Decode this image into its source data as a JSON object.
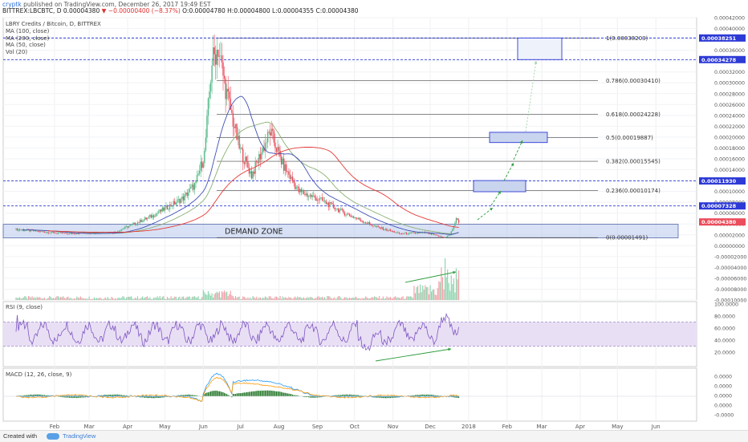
{
  "header": {
    "user": "cryptk",
    "published": "published on TradingView.com, December 26, 2017 19:49 EST",
    "symbol": "BITTREX:LBCBTC, D",
    "price": "0.00004380",
    "change": "−0.00000400 (−8.37%)",
    "ohlc": "O:0.00004780 H:0.00004800 L:0.00004355 C:0.00004380"
  },
  "legend": {
    "title": "LBRY Credits / Bitcoin, D, BITTREX",
    "ma100": "MA (100, close)",
    "ma200": "MA (200, close)",
    "ma50": "MA (50, close)",
    "vol": "Vol (20)",
    "rsi": "RSI (9, close)",
    "macd": "MACD (12, 26, close, 9)"
  },
  "footer": {
    "created": "Created with",
    "brand": "TradingView"
  },
  "colors": {
    "up": "#53b987",
    "down": "#eb4d5c",
    "ma100": "#3f51b5",
    "ma200": "#e53935",
    "ma50": "#8bb174",
    "fib": "#555555",
    "level": "#2d3ad6",
    "zone": "#b8c8ec",
    "rsi": "#7e57c2",
    "rsiband": "#e9dff5",
    "macd": "#2196f3",
    "signal": "#ff9800",
    "arrow": "#2e9e3e"
  },
  "chart_data": [
    {
      "type": "candlestick",
      "title": "LBRY Credits / Bitcoin, D, BITTREX",
      "x_labels": [
        "Feb",
        "Mar",
        "Apr",
        "May",
        "Jun",
        "Jul",
        "Aug",
        "Sep",
        "Oct",
        "Nov",
        "Dec",
        "2018",
        "Feb",
        "Mar",
        "Apr",
        "May",
        "Jun"
      ],
      "ylim": [
        -0.0001,
        0.00042
      ],
      "y_ticks": [
        "0.00042000",
        "0.00040000",
        "0.00038000",
        "0.00036000",
        "0.00034000",
        "0.00032000",
        "0.00030000",
        "0.00028000",
        "0.00026000",
        "0.00024000",
        "0.00022000",
        "0.00020000",
        "0.00018000",
        "0.00016000",
        "0.00014000",
        "0.00012000",
        "0.00010000",
        "0.00008000",
        "0.00006000",
        "0.00004000",
        "0.00002000",
        "0.00000000",
        "-0.00002000",
        "-0.00004000",
        "-0.00006000",
        "-0.00008000",
        "-0.00010000"
      ],
      "fib_levels": [
        {
          "label": "1(0.00038203)",
          "value": 0.00038203
        },
        {
          "label": "0.786(0.00030410)",
          "value": 0.0003041
        },
        {
          "label": "0.618(0.00024228)",
          "value": 0.00024228
        },
        {
          "label": "0.5(0.00019887)",
          "value": 0.00019887
        },
        {
          "label": "0.382(0.00015545)",
          "value": 0.00015545
        },
        {
          "label": "0.236(0.00010174)",
          "value": 0.00010174
        },
        {
          "label": "0(0.00001491)",
          "value": 1.491e-05
        }
      ],
      "price_levels": [
        {
          "label": "0.00038251",
          "value": 0.00038251
        },
        {
          "label": "0.00034278",
          "value": 0.00034278
        },
        {
          "label": "0.00011930",
          "value": 0.0001193
        },
        {
          "label": "0.00007328",
          "value": 7.328e-05
        }
      ],
      "last_price": "0.00004380",
      "annotations": [
        "DEMAND ZONE"
      ],
      "demand_zone": [
        1.45e-05,
        3.95e-05
      ],
      "target_boxes": [
        {
          "low": 9.944e-05,
          "high": 0.00012,
          "x_start": "Dec 27",
          "x_end": "Jan 20"
        },
        {
          "low": 0.00019,
          "high": 0.00020887,
          "x_start": "Jan 12",
          "x_end": "Feb 5"
        },
        {
          "low": 0.00034278,
          "high": 0.00038251,
          "x_start": "Feb 5",
          "x_end": "Feb 26"
        }
      ]
    },
    {
      "type": "line",
      "title": "RSI (9, close)",
      "ylim": [
        0,
        100
      ],
      "y_ticks": [
        "100.0000",
        "80.0000",
        "60.0000",
        "40.0000",
        "20.0000"
      ],
      "band": [
        30,
        70
      ]
    },
    {
      "type": "line",
      "title": "MACD (12, 26, close, 9)",
      "y_ticks": [
        "0.0000",
        "0.0000",
        "0.0000",
        "0.0000",
        "-0.0000"
      ],
      "series": [
        {
          "name": "MACD"
        },
        {
          "name": "Signal"
        },
        {
          "name": "Histogram"
        }
      ]
    }
  ]
}
